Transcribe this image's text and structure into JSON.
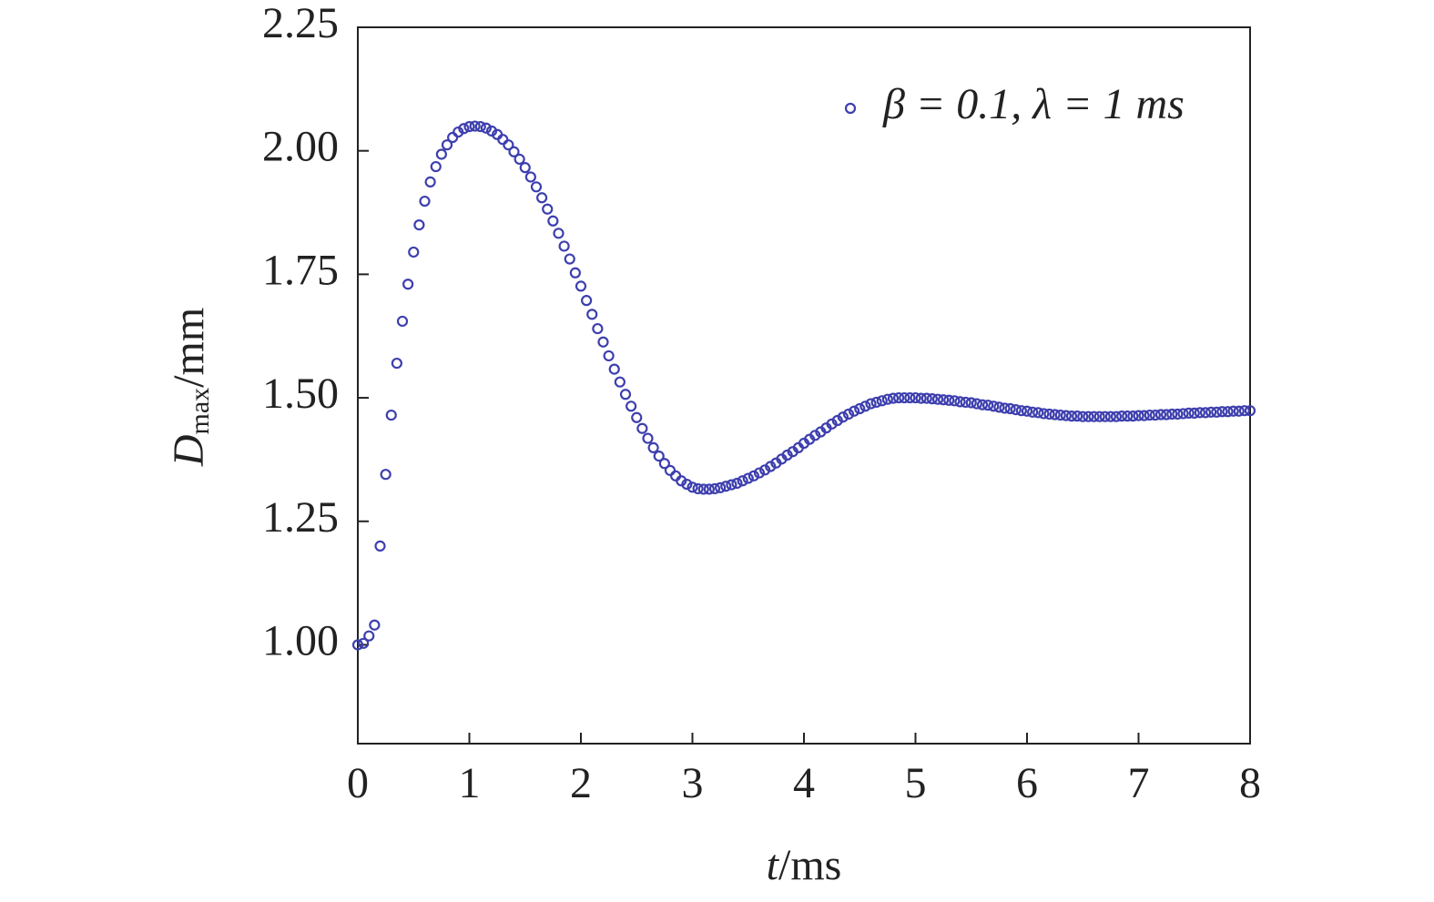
{
  "chart_data": {
    "type": "scatter",
    "xlabel": {
      "symbol": "t",
      "unit": "/ms"
    },
    "ylabel": {
      "symbol": "D",
      "subscript": "max",
      "unit": "/mm"
    },
    "xlim": [
      0,
      8
    ],
    "xticks": [
      0,
      1,
      2,
      3,
      4,
      5,
      6,
      7,
      8
    ],
    "ylim": [
      0.8,
      2.25
    ],
    "yticks": [
      {
        "value": 1,
        "label": "1.00"
      },
      {
        "value": 1.25,
        "label": "1.25"
      },
      {
        "value": 1.5,
        "label": "1.50"
      },
      {
        "value": 1.75,
        "label": "1.75"
      },
      {
        "value": 2,
        "label": "2.00"
      },
      {
        "value": 2.25,
        "label": "2.25"
      }
    ],
    "legend": "upper right",
    "x": [
      0,
      0.05,
      0.1,
      0.15,
      0.2,
      0.25,
      0.3,
      0.35,
      0.4,
      0.45,
      0.5,
      0.55,
      0.6,
      0.65,
      0.7,
      0.75,
      0.8,
      0.85,
      0.9,
      0.95,
      1.0,
      1.05,
      1.1,
      1.15,
      1.2,
      1.25,
      1.3,
      1.35,
      1.4,
      1.45,
      1.5,
      1.55,
      1.6,
      1.65,
      1.7,
      1.75,
      1.8,
      1.85,
      1.9,
      1.95,
      2.0,
      2.05,
      2.1,
      2.15,
      2.2,
      2.25,
      2.3,
      2.35,
      2.4,
      2.45,
      2.5,
      2.55,
      2.6,
      2.65,
      2.7,
      2.75,
      2.8,
      2.85,
      2.9,
      2.95,
      3.0,
      3.05,
      3.1,
      3.15,
      3.2,
      3.25,
      3.3,
      3.35,
      3.4,
      3.45,
      3.5,
      3.55,
      3.6,
      3.65,
      3.7,
      3.75,
      3.8,
      3.85,
      3.9,
      3.95,
      4.0,
      4.05,
      4.1,
      4.15,
      4.2,
      4.25,
      4.3,
      4.35,
      4.4,
      4.45,
      4.5,
      4.55,
      4.6,
      4.65,
      4.7,
      4.75,
      4.8,
      4.85,
      4.9,
      4.95,
      5.0,
      5.05,
      5.1,
      5.15,
      5.2,
      5.25,
      5.3,
      5.35,
      5.4,
      5.45,
      5.5,
      5.55,
      5.6,
      5.65,
      5.7,
      5.75,
      5.8,
      5.85,
      5.9,
      5.95,
      6.0,
      6.05,
      6.1,
      6.15,
      6.2,
      6.25,
      6.3,
      6.35,
      6.4,
      6.45,
      6.5,
      6.55,
      6.6,
      6.65,
      6.7,
      6.75,
      6.8,
      6.85,
      6.9,
      6.95,
      7.0,
      7.05,
      7.1,
      7.15,
      7.2,
      7.25,
      7.3,
      7.35,
      7.4,
      7.45,
      7.5,
      7.55,
      7.6,
      7.65,
      7.7,
      7.75,
      7.8,
      7.85,
      7.9,
      7.95,
      8.0
    ],
    "series": [
      {
        "name": "β = 0.1, λ = 1 ms",
        "color": "#3d3fae",
        "values": [
          1.0,
          1.003,
          1.018,
          1.04,
          1.2,
          1.345,
          1.465,
          1.57,
          1.655,
          1.73,
          1.795,
          1.85,
          1.898,
          1.937,
          1.968,
          1.993,
          2.012,
          2.027,
          2.038,
          2.045,
          2.049,
          2.05,
          2.049,
          2.046,
          2.04,
          2.033,
          2.023,
          2.012,
          1.998,
          1.983,
          1.966,
          1.947,
          1.927,
          1.905,
          1.882,
          1.858,
          1.833,
          1.807,
          1.781,
          1.753,
          1.726,
          1.697,
          1.669,
          1.64,
          1.613,
          1.585,
          1.558,
          1.532,
          1.507,
          1.483,
          1.46,
          1.438,
          1.418,
          1.399,
          1.382,
          1.367,
          1.353,
          1.342,
          1.332,
          1.325,
          1.319,
          1.316,
          1.315,
          1.315,
          1.316,
          1.318,
          1.321,
          1.324,
          1.327,
          1.332,
          1.337,
          1.342,
          1.348,
          1.354,
          1.361,
          1.368,
          1.376,
          1.384,
          1.391,
          1.399,
          1.408,
          1.416,
          1.424,
          1.431,
          1.439,
          1.447,
          1.454,
          1.461,
          1.467,
          1.473,
          1.478,
          1.483,
          1.488,
          1.491,
          1.494,
          1.497,
          1.499,
          1.5,
          1.5,
          1.5,
          1.5,
          1.499,
          1.499,
          1.498,
          1.497,
          1.496,
          1.495,
          1.494,
          1.492,
          1.491,
          1.49,
          1.488,
          1.486,
          1.485,
          1.483,
          1.481,
          1.479,
          1.478,
          1.476,
          1.474,
          1.473,
          1.471,
          1.47,
          1.468,
          1.467,
          1.466,
          1.465,
          1.464,
          1.463,
          1.463,
          1.462,
          1.462,
          1.462,
          1.462,
          1.462,
          1.462,
          1.462,
          1.463,
          1.463,
          1.463,
          1.464,
          1.464,
          1.465,
          1.465,
          1.466,
          1.466,
          1.467,
          1.467,
          1.468,
          1.469,
          1.469,
          1.47,
          1.47,
          1.471,
          1.471,
          1.472,
          1.472,
          1.473,
          1.473,
          1.474,
          1.474
        ]
      }
    ]
  }
}
